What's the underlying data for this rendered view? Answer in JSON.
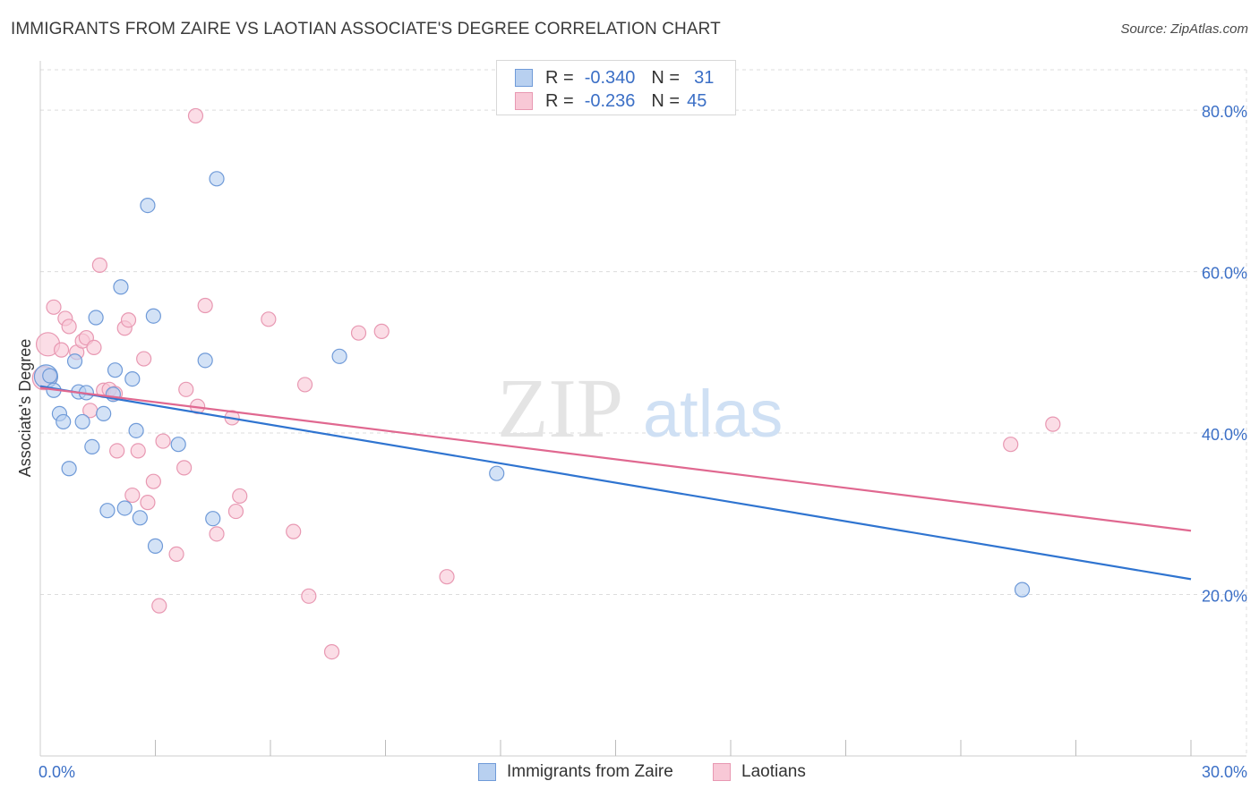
{
  "title": "IMMIGRANTS FROM ZAIRE VS LAOTIAN ASSOCIATE'S DEGREE CORRELATION CHART",
  "source": "Source: ZipAtlas.com",
  "watermark": {
    "zip": "ZIP",
    "atlas": "atlas"
  },
  "legend_top": [
    {
      "r_label": "R =",
      "r_value": "-0.340",
      "n_label": "N =",
      "n_value": "31"
    },
    {
      "r_label": "R =",
      "r_value": "-0.236",
      "n_label": "N =",
      "n_value": "45"
    }
  ],
  "legend_bottom": [
    {
      "label": "Immigrants from Zaire"
    },
    {
      "label": "Laotians"
    }
  ],
  "colors": {
    "zaire_fill": "#b8d0f0",
    "zaire_stroke": "#6f9ad8",
    "zaire_line": "#2f74d0",
    "laos_fill": "#f8c8d6",
    "laos_stroke": "#e898b2",
    "laos_line": "#e06890",
    "tick_label": "#3b6fc6",
    "grid": "#dcdcdc"
  },
  "chart_data": {
    "type": "scatter",
    "title": "IMMIGRANTS FROM ZAIRE VS LAOTIAN ASSOCIATE'S DEGREE CORRELATION CHART",
    "xlabel": "",
    "ylabel": "Associate's Degree",
    "xlim": [
      0,
      30
    ],
    "ylim": [
      0,
      85
    ],
    "x_tick_labels": [
      {
        "value": 0,
        "label": "0.0%"
      },
      {
        "value": 30,
        "label": "30.0%"
      }
    ],
    "y_tick_labels": [
      {
        "value": 20,
        "label": "20.0%"
      },
      {
        "value": 40,
        "label": "40.0%"
      },
      {
        "value": 60,
        "label": "60.0%"
      },
      {
        "value": 80,
        "label": "80.0%"
      }
    ],
    "grid": "horizontal dashed",
    "series": [
      {
        "name": "Immigrants from Zaire",
        "trend": {
          "x": [
            0,
            30
          ],
          "y": [
            45.8,
            21.9
          ]
        },
        "points": [
          {
            "x": 0.15,
            "y": 47.0,
            "big": true
          },
          {
            "x": 0.35,
            "y": 45.3
          },
          {
            "x": 0.5,
            "y": 42.4
          },
          {
            "x": 0.6,
            "y": 41.4
          },
          {
            "x": 0.75,
            "y": 35.6
          },
          {
            "x": 0.9,
            "y": 48.9
          },
          {
            "x": 1.0,
            "y": 45.1
          },
          {
            "x": 1.1,
            "y": 41.4
          },
          {
            "x": 1.2,
            "y": 45.0
          },
          {
            "x": 1.35,
            "y": 38.3
          },
          {
            "x": 1.45,
            "y": 54.3
          },
          {
            "x": 1.65,
            "y": 42.4
          },
          {
            "x": 1.75,
            "y": 30.4
          },
          {
            "x": 1.95,
            "y": 47.8
          },
          {
            "x": 2.1,
            "y": 58.1
          },
          {
            "x": 2.2,
            "y": 30.7
          },
          {
            "x": 2.4,
            "y": 46.7
          },
          {
            "x": 2.5,
            "y": 40.3
          },
          {
            "x": 2.6,
            "y": 29.5
          },
          {
            "x": 2.8,
            "y": 68.2
          },
          {
            "x": 2.95,
            "y": 54.5
          },
          {
            "x": 3.0,
            "y": 26.0
          },
          {
            "x": 1.9,
            "y": 44.8
          },
          {
            "x": 3.6,
            "y": 38.6
          },
          {
            "x": 4.3,
            "y": 49.0
          },
          {
            "x": 4.5,
            "y": 29.4
          },
          {
            "x": 4.6,
            "y": 71.5
          },
          {
            "x": 7.8,
            "y": 49.5
          },
          {
            "x": 11.9,
            "y": 35.0
          },
          {
            "x": 25.6,
            "y": 20.6
          },
          {
            "x": 0.25,
            "y": 47.1
          }
        ]
      },
      {
        "name": "Laotians",
        "trend": {
          "x": [
            0,
            30
          ],
          "y": [
            45.6,
            27.9
          ]
        },
        "points": [
          {
            "x": 0.1,
            "y": 46.8,
            "big": true
          },
          {
            "x": 0.2,
            "y": 51.0,
            "big": true
          },
          {
            "x": 0.35,
            "y": 55.6
          },
          {
            "x": 0.55,
            "y": 50.3
          },
          {
            "x": 0.65,
            "y": 54.2
          },
          {
            "x": 0.75,
            "y": 53.2
          },
          {
            "x": 0.95,
            "y": 50.0
          },
          {
            "x": 1.1,
            "y": 51.4
          },
          {
            "x": 1.2,
            "y": 51.8
          },
          {
            "x": 1.3,
            "y": 42.8
          },
          {
            "x": 1.4,
            "y": 50.6
          },
          {
            "x": 1.55,
            "y": 60.8
          },
          {
            "x": 1.65,
            "y": 45.3
          },
          {
            "x": 1.8,
            "y": 45.4
          },
          {
            "x": 1.95,
            "y": 44.9
          },
          {
            "x": 2.0,
            "y": 37.8
          },
          {
            "x": 2.2,
            "y": 53.0
          },
          {
            "x": 2.3,
            "y": 54.0
          },
          {
            "x": 2.4,
            "y": 32.3
          },
          {
            "x": 2.55,
            "y": 37.8
          },
          {
            "x": 2.7,
            "y": 49.2
          },
          {
            "x": 2.8,
            "y": 31.4
          },
          {
            "x": 2.95,
            "y": 34.0
          },
          {
            "x": 3.1,
            "y": 18.6
          },
          {
            "x": 3.2,
            "y": 39.0
          },
          {
            "x": 3.55,
            "y": 25.0
          },
          {
            "x": 3.75,
            "y": 35.7
          },
          {
            "x": 3.8,
            "y": 45.4
          },
          {
            "x": 4.1,
            "y": 43.3
          },
          {
            "x": 4.3,
            "y": 55.8
          },
          {
            "x": 4.6,
            "y": 27.5
          },
          {
            "x": 5.0,
            "y": 41.9
          },
          {
            "x": 5.1,
            "y": 30.3
          },
          {
            "x": 5.2,
            "y": 32.2
          },
          {
            "x": 5.95,
            "y": 54.1
          },
          {
            "x": 6.6,
            "y": 27.8
          },
          {
            "x": 6.9,
            "y": 46.0
          },
          {
            "x": 7.0,
            "y": 19.8
          },
          {
            "x": 7.6,
            "y": 12.9
          },
          {
            "x": 8.3,
            "y": 52.4
          },
          {
            "x": 8.9,
            "y": 52.6
          },
          {
            "x": 10.6,
            "y": 22.2
          },
          {
            "x": 4.05,
            "y": 79.3
          },
          {
            "x": 25.3,
            "y": 38.6
          },
          {
            "x": 26.4,
            "y": 41.1
          }
        ]
      }
    ]
  }
}
